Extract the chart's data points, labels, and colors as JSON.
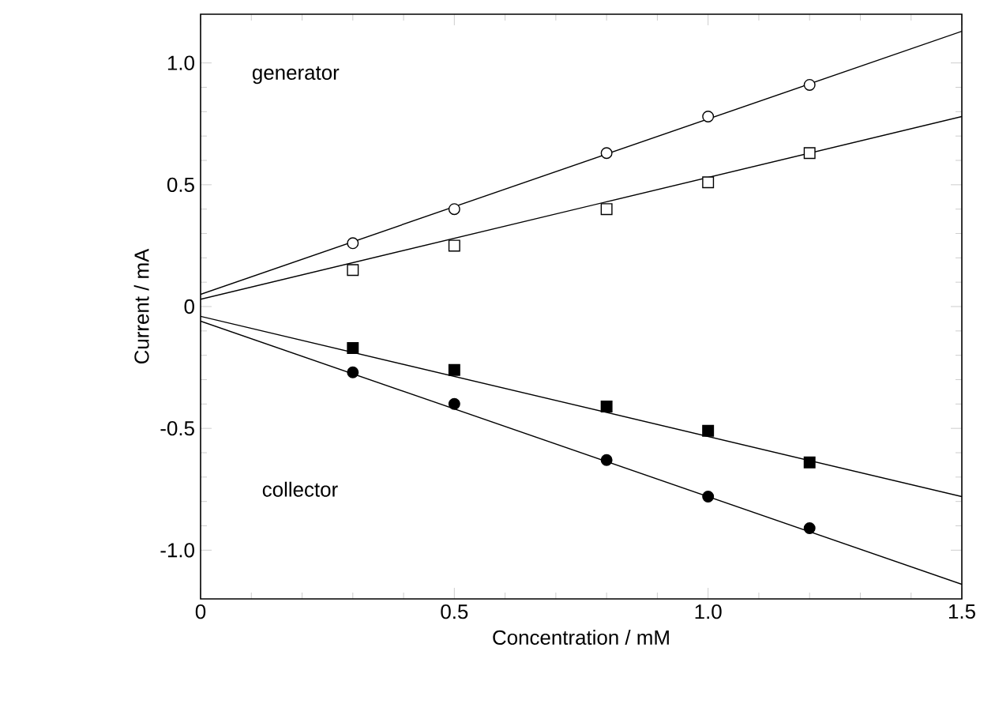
{
  "chart_data": {
    "type": "scatter",
    "xlabel": "Concentration / mM",
    "ylabel": "Current / mA",
    "xlim": [
      0,
      1.5
    ],
    "ylim": [
      -1.2,
      1.2
    ],
    "xticks": [
      0,
      {
        "value": 0.5,
        "label": "0.5"
      },
      {
        "value": 1,
        "label": "1.0"
      },
      {
        "value": 1.5,
        "label": "1.5"
      }
    ],
    "yticks": [
      {
        "value": -1,
        "label": "-1.0"
      },
      {
        "value": -0.5,
        "label": "-0.5"
      },
      0,
      {
        "value": 0.5,
        "label": "0.5"
      },
      {
        "value": 1,
        "label": "1.0"
      }
    ],
    "annotations": [
      "generator",
      "collector"
    ],
    "series": [
      {
        "marker": "circle",
        "color": "#ffffff",
        "x": [
          0.3,
          0.5,
          0.8,
          1.0,
          1.2
        ],
        "values": [
          0.26,
          0.4,
          0.63,
          0.78,
          0.91
        ]
      },
      {
        "marker": "square",
        "color": "#ffffff",
        "x": [
          0.3,
          0.5,
          0.8,
          1.0,
          1.2
        ],
        "values": [
          0.15,
          0.25,
          0.4,
          0.51,
          0.63
        ]
      },
      {
        "marker": "square",
        "color": "#000000",
        "x": [
          0.3,
          0.5,
          0.8,
          1.0,
          1.2
        ],
        "values": [
          -0.17,
          -0.26,
          -0.41,
          -0.51,
          -0.64
        ]
      },
      {
        "marker": "circle",
        "color": "#000000",
        "x": [
          0.3,
          0.5,
          0.8,
          1.0,
          1.2
        ],
        "values": [
          -0.27,
          -0.4,
          -0.63,
          -0.78,
          -0.91
        ]
      },
      {
        "type": "line",
        "marker": "none",
        "color": "#000000",
        "x": [
          0,
          1.5
        ],
        "values": [
          0.05,
          1.13
        ]
      },
      {
        "type": "line",
        "marker": "none",
        "color": "#000000",
        "x": [
          0,
          1.5
        ],
        "values": [
          0.03,
          0.78
        ]
      },
      {
        "type": "line",
        "marker": "none",
        "color": "#000000",
        "x": [
          0,
          1.5
        ],
        "values": [
          -0.04,
          -0.78
        ]
      },
      {
        "type": "line",
        "marker": "none",
        "color": "#000000",
        "x": [
          0,
          1.5
        ],
        "values": [
          -0.06,
          -1.14
        ]
      }
    ]
  }
}
